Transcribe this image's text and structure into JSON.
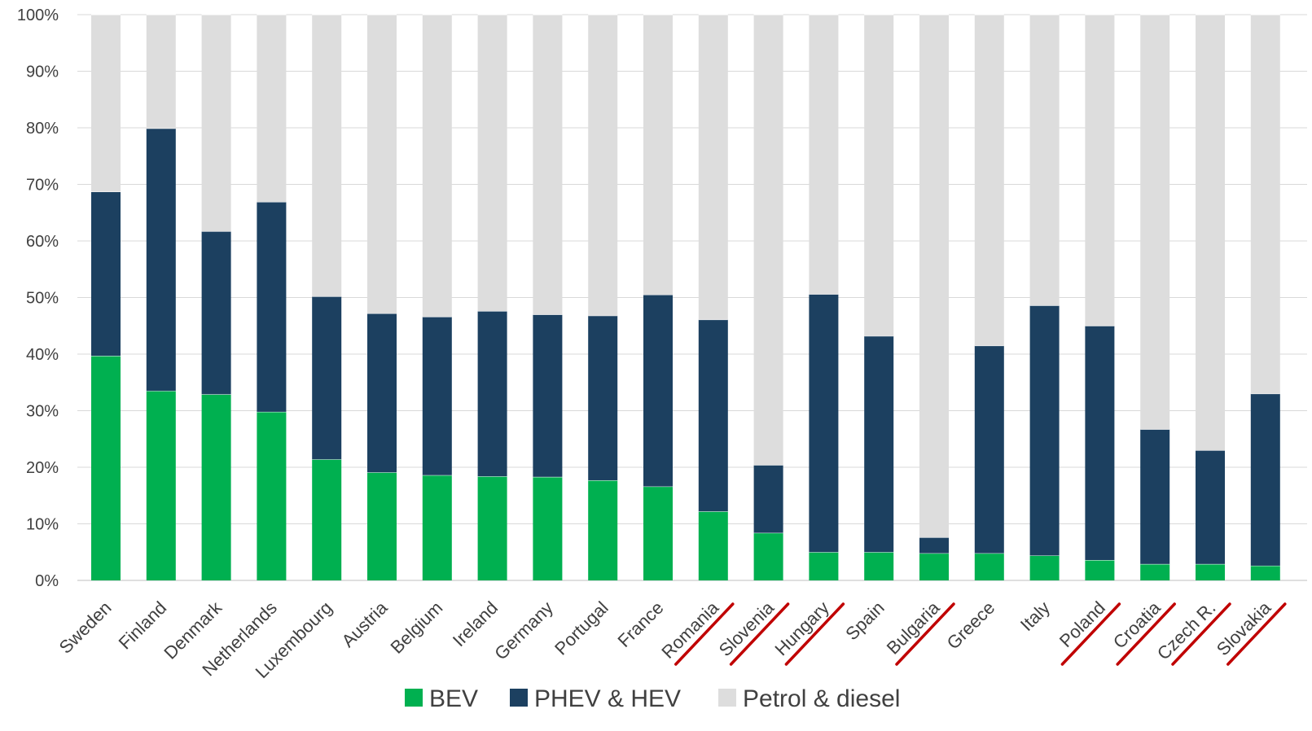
{
  "chart_data": {
    "type": "bar",
    "stacked": true,
    "categories": [
      "Sweden",
      "Finland",
      "Denmark",
      "Netherlands",
      "Luxembourg",
      "Austria",
      "Belgium",
      "Ireland",
      "Germany",
      "Portugal",
      "France",
      "Romania",
      "Slovenia",
      "Hungary",
      "Spain",
      "Bulgaria",
      "Greece",
      "Italy",
      "Poland",
      "Croatia",
      "Czech R.",
      "Slovakia"
    ],
    "struck_categories": [
      "Romania",
      "Slovenia",
      "Hungary",
      "Bulgaria",
      "Poland",
      "Croatia",
      "Czech R.",
      "Slovakia"
    ],
    "series": [
      {
        "name": "BEV",
        "color": "#00b050",
        "values": [
          39.7,
          33.5,
          32.9,
          29.8,
          21.4,
          19.1,
          18.6,
          18.4,
          18.3,
          17.7,
          16.6,
          12.2,
          8.4,
          5.0,
          5.0,
          4.8,
          4.8,
          4.4,
          3.6,
          2.9,
          2.9,
          2.6
        ]
      },
      {
        "name": "PHEV & HEV",
        "color": "#1c4060",
        "values": [
          29.0,
          46.4,
          28.8,
          37.1,
          28.8,
          28.1,
          28.0,
          29.2,
          28.7,
          29.1,
          33.9,
          33.9,
          12.0,
          45.6,
          38.2,
          2.8,
          36.7,
          44.2,
          41.4,
          23.8,
          20.1,
          30.4
        ]
      },
      {
        "name": "Petrol & diesel",
        "color": "#dddddd",
        "values": [
          31.3,
          20.1,
          38.3,
          33.1,
          49.8,
          52.8,
          53.4,
          52.4,
          53.0,
          53.2,
          49.5,
          53.9,
          79.6,
          49.4,
          56.8,
          92.4,
          58.5,
          51.4,
          55.0,
          73.3,
          77.0,
          67.0
        ]
      }
    ],
    "yticks": [
      "0%",
      "10%",
      "20%",
      "30%",
      "40%",
      "50%",
      "60%",
      "70%",
      "80%",
      "90%",
      "100%"
    ],
    "ylim": [
      0,
      100
    ],
    "grid": true,
    "legend_position": "bottom",
    "strike_color": "#c00000"
  }
}
